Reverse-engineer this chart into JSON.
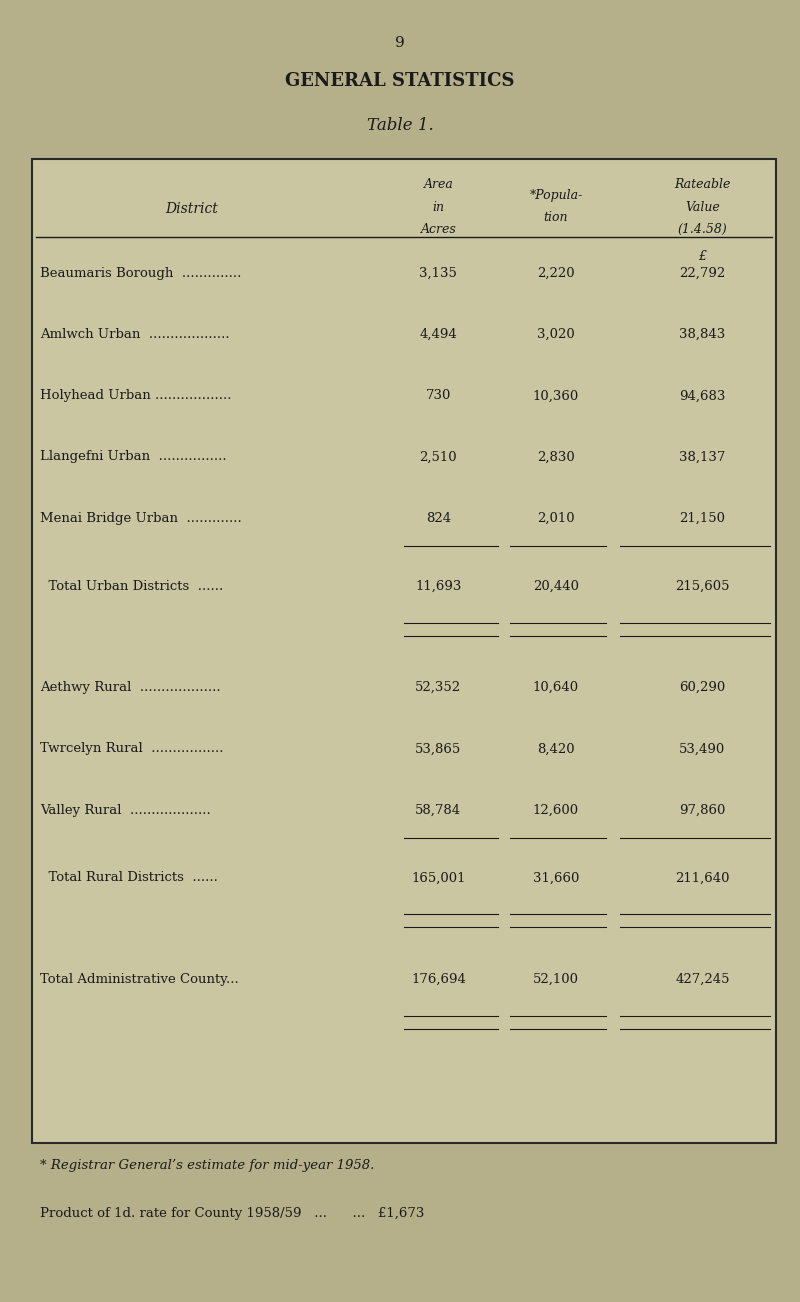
{
  "bg_color": "#b5b08a",
  "page_num": "9",
  "title": "GENERAL STATISTICS",
  "table_title": "Table 1.",
  "currency_symbol": "£",
  "rows": [
    {
      "district": "Beaumaris Borough  ..............",
      "area": "3,135",
      "pop": "2,220",
      "rateable": "22,792"
    },
    {
      "district": "Amlwch Urban  ...................",
      "area": "4,494",
      "pop": "3,020",
      "rateable": "38,843"
    },
    {
      "district": "Holyhead Urban ..................",
      "area": "730",
      "pop": "10,360",
      "rateable": "94,683"
    },
    {
      "district": "Llangefni Urban  ................",
      "area": "2,510",
      "pop": "2,830",
      "rateable": "38,137"
    },
    {
      "district": "Menai Bridge Urban  .............",
      "area": "824",
      "pop": "2,010",
      "rateable": "21,150"
    }
  ],
  "total_urban": {
    "district": "  Total Urban Districts  ......",
    "area": "11,693",
    "pop": "20,440",
    "rateable": "215,605"
  },
  "rural_rows": [
    {
      "district": "Aethwy Rural  ...................",
      "area": "52,352",
      "pop": "10,640",
      "rateable": "60,290"
    },
    {
      "district": "Twrcelyn Rural  .................",
      "area": "53,865",
      "pop": "8,420",
      "rateable": "53,490"
    },
    {
      "district": "Valley Rural  ...................",
      "area": "58,784",
      "pop": "12,600",
      "rateable": "97,860"
    }
  ],
  "total_rural": {
    "district": "  Total Rural Districts  ......",
    "area": "165,001",
    "pop": "31,660",
    "rateable": "211,640"
  },
  "total_admin": {
    "district": "Total Administrative County...",
    "area": "176,694",
    "pop": "52,100",
    "rateable": "427,245"
  },
  "footnote": "* Registrar General’s estimate for mid-year 1958.",
  "product_line1": "Product of 1d. rate for County 1958/59   ...      ...   £1,673",
  "col_header_district": "District",
  "col_header_area1": "Area",
  "col_header_area2": "in",
  "col_header_area3": "Acres",
  "col_header_pop1": "*Popula-",
  "col_header_pop2": "tion",
  "col_header_rv1": "Rateable",
  "col_header_rv2": "Value",
  "col_header_rv3": "(1.4.58)"
}
